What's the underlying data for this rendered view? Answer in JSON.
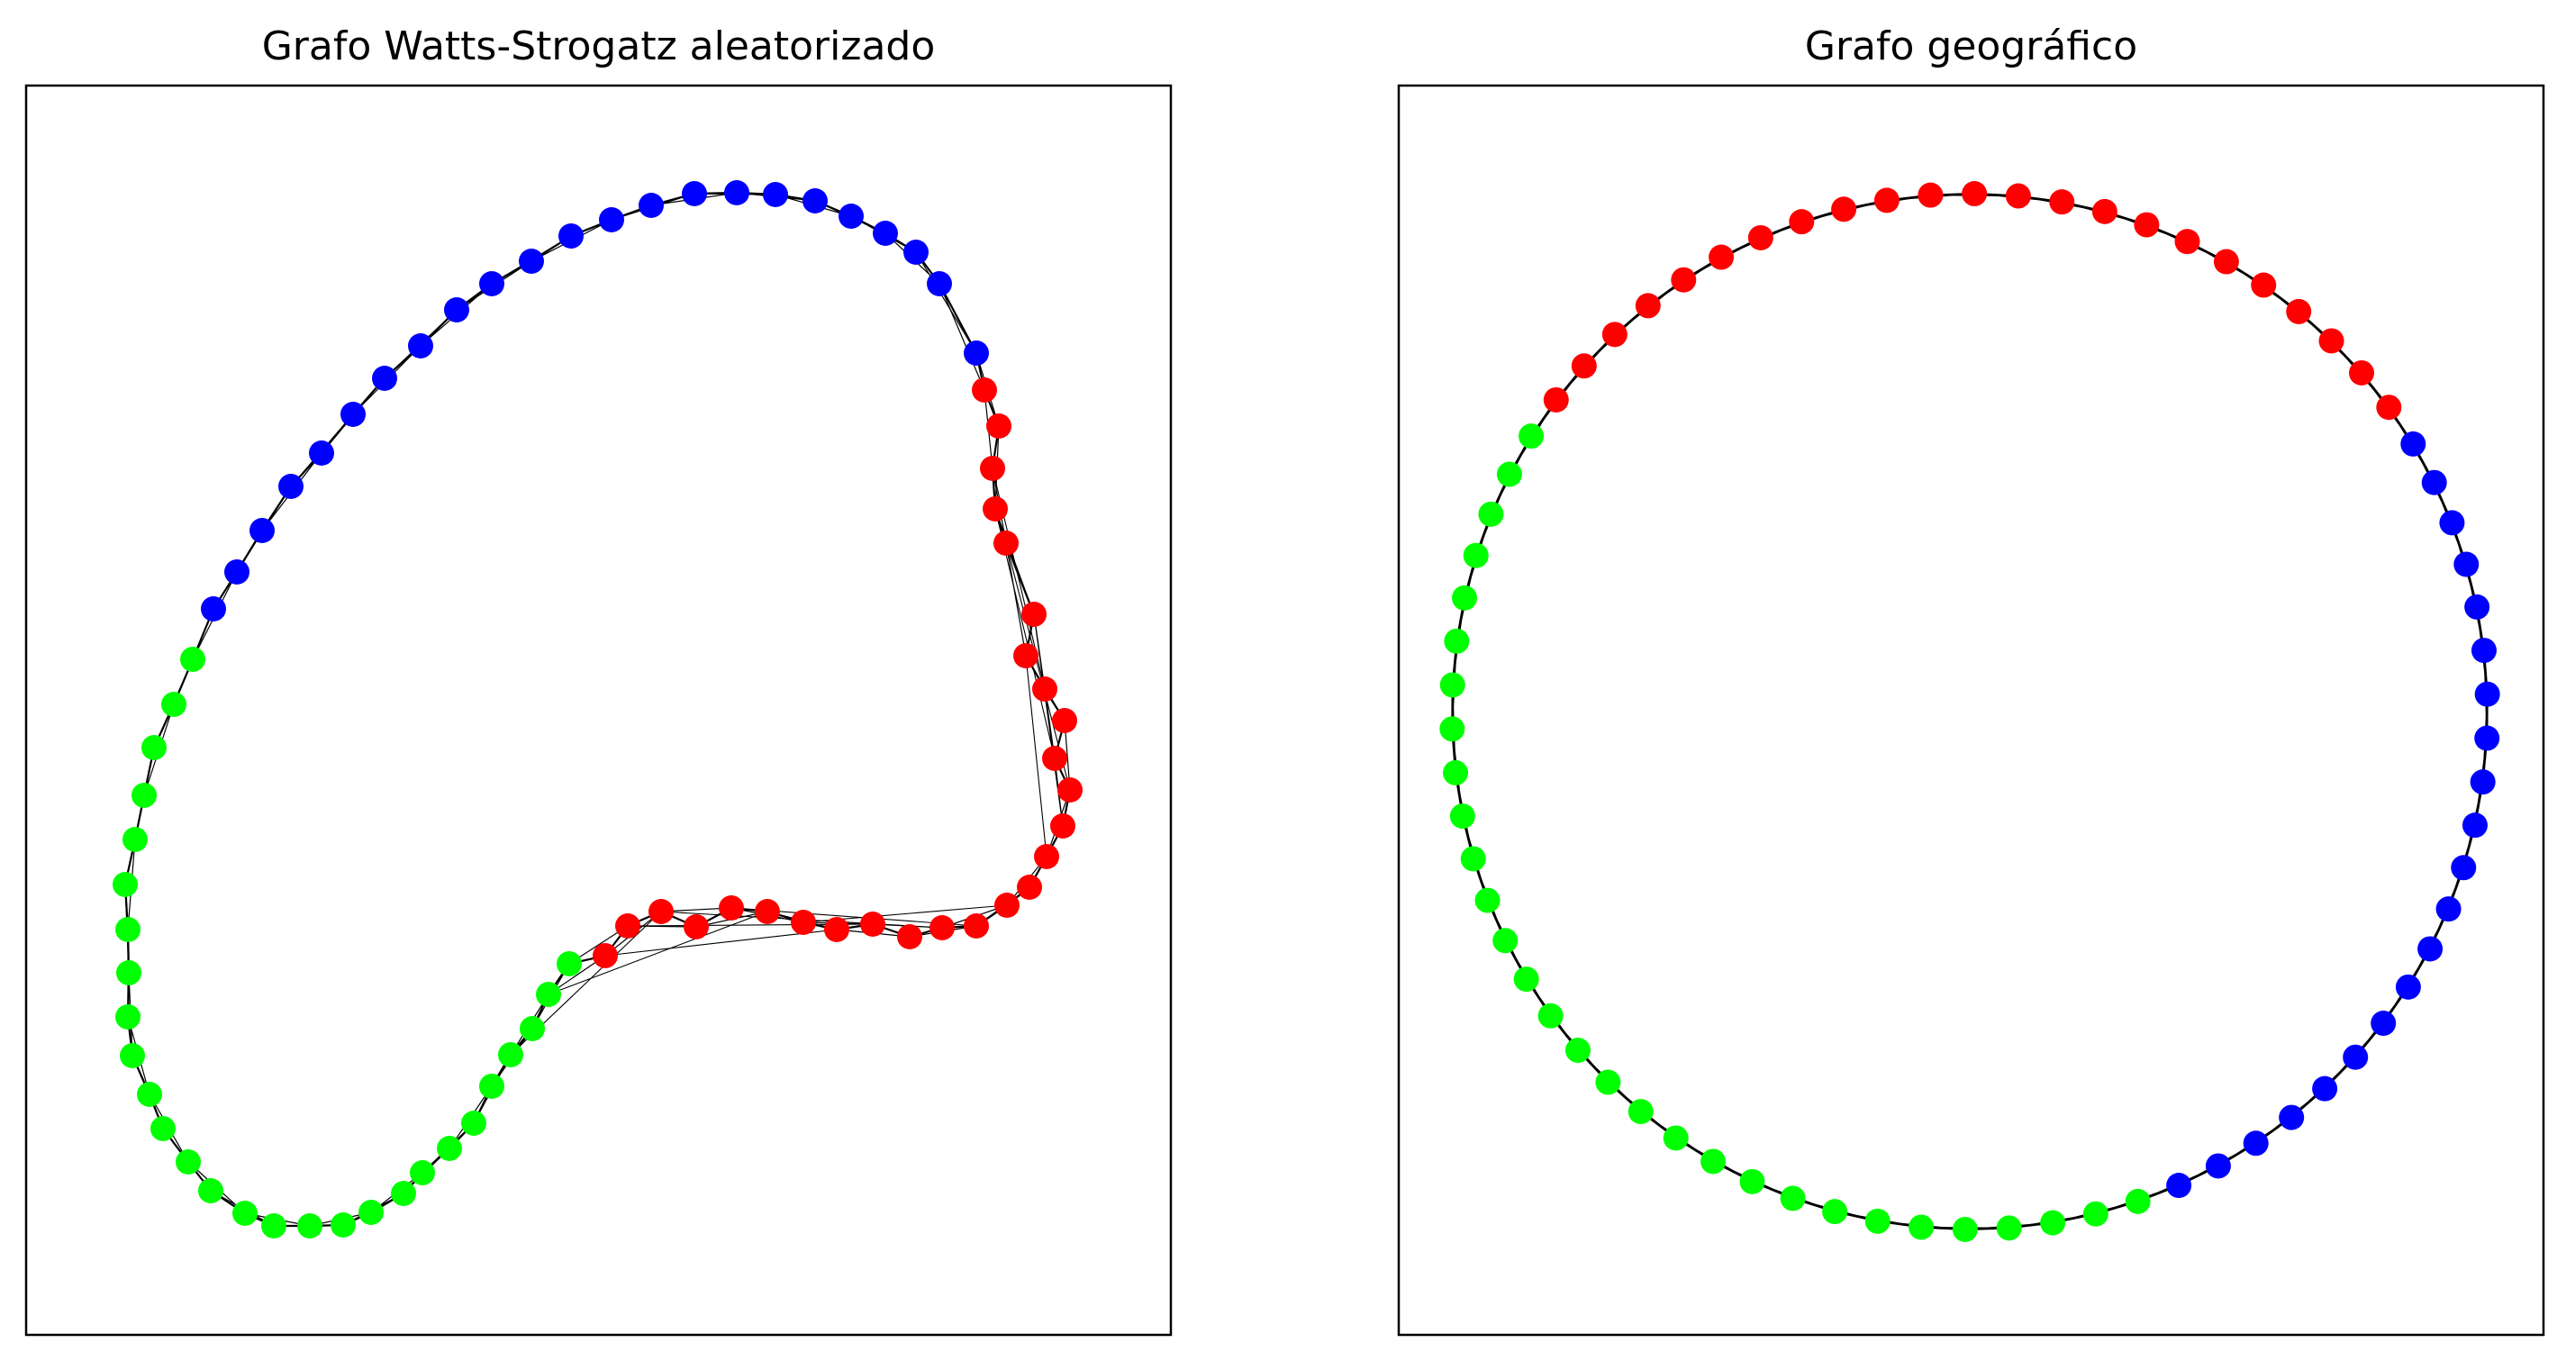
{
  "panels": [
    {
      "id": "left",
      "title": "Grafo Watts-Strogatz aleatorizado",
      "layout": "irregular ring with inward fold",
      "node_groups": [
        {
          "color": "#0000ff",
          "count": 23
        },
        {
          "color": "#ff0000",
          "count": 27
        },
        {
          "color": "#00ff00",
          "count": 30
        }
      ],
      "edges": "each node linked to its nearest ring neighbours; several long edges cross the red group"
    },
    {
      "id": "right",
      "title": "Grafo geográfico",
      "layout": "circle",
      "node_groups": [
        {
          "color": "#ff0000",
          "count": 23
        },
        {
          "color": "#0000ff",
          "count": 21
        },
        {
          "color": "#00ff00",
          "count": 30
        }
      ],
      "edges": "consecutive nodes on the circle connected"
    }
  ],
  "colors": {
    "edge": "#000000",
    "frame": "#000000",
    "background": "#ffffff"
  }
}
